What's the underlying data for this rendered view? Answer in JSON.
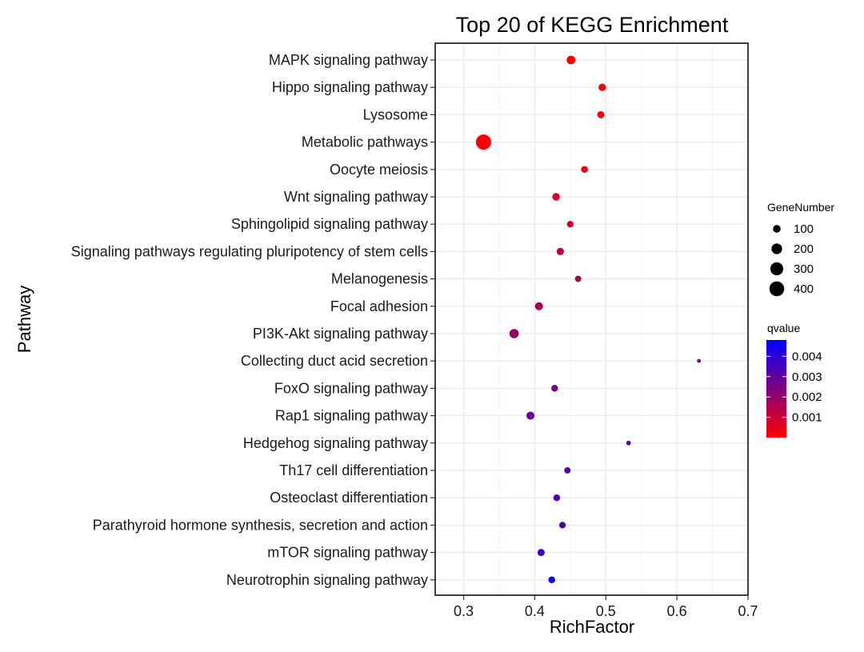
{
  "chart_data": {
    "type": "scatter",
    "title": "Top 20 of KEGG Enrichment",
    "xlabel": "RichFactor",
    "ylabel": "Pathway",
    "xlim": [
      0.26,
      0.7
    ],
    "xticks": [
      0.3,
      0.4,
      0.5,
      0.6,
      0.7
    ],
    "xtick_labels": [
      "0.3",
      "0.4",
      "0.5",
      "0.6",
      "0.7"
    ],
    "grid": true,
    "points": [
      {
        "pathway": "MAPK signaling pathway",
        "rich_factor": 0.451,
        "gene_number": 130,
        "qvalue": 2e-05
      },
      {
        "pathway": "Hippo signaling pathway",
        "rich_factor": 0.495,
        "gene_number": 95,
        "qvalue": 5e-05
      },
      {
        "pathway": "Lysosome",
        "rich_factor": 0.493,
        "gene_number": 85,
        "qvalue": 8e-05
      },
      {
        "pathway": "Metabolic pathways",
        "rich_factor": 0.328,
        "gene_number": 420,
        "qvalue": 0.0001
      },
      {
        "pathway": "Oocyte meiosis",
        "rich_factor": 0.47,
        "gene_number": 75,
        "qvalue": 0.0004
      },
      {
        "pathway": "Wnt signaling pathway",
        "rich_factor": 0.43,
        "gene_number": 95,
        "qvalue": 0.0006
      },
      {
        "pathway": "Sphingolipid signaling pathway",
        "rich_factor": 0.45,
        "gene_number": 70,
        "qvalue": 0.0009
      },
      {
        "pathway": "Signaling pathways regulating pluripotency of stem cells",
        "rich_factor": 0.436,
        "gene_number": 90,
        "qvalue": 0.0012
      },
      {
        "pathway": "Melanogenesis",
        "rich_factor": 0.461,
        "gene_number": 65,
        "qvalue": 0.0014
      },
      {
        "pathway": "Focal adhesion",
        "rich_factor": 0.406,
        "gene_number": 110,
        "qvalue": 0.0016
      },
      {
        "pathway": "PI3K-Akt signaling pathway",
        "rich_factor": 0.371,
        "gene_number": 150,
        "qvalue": 0.0019
      },
      {
        "pathway": "Collecting duct acid secretion",
        "rich_factor": 0.631,
        "gene_number": 18,
        "qvalue": 0.0024
      },
      {
        "pathway": "FoxO signaling pathway",
        "rich_factor": 0.428,
        "gene_number": 75,
        "qvalue": 0.0026
      },
      {
        "pathway": "Rap1 signaling pathway",
        "rich_factor": 0.394,
        "gene_number": 110,
        "qvalue": 0.0028
      },
      {
        "pathway": "Hedgehog signaling pathway",
        "rich_factor": 0.532,
        "gene_number": 30,
        "qvalue": 0.003
      },
      {
        "pathway": "Th17 cell differentiation",
        "rich_factor": 0.446,
        "gene_number": 65,
        "qvalue": 0.0031
      },
      {
        "pathway": "Osteoclast differentiation",
        "rich_factor": 0.431,
        "gene_number": 75,
        "qvalue": 0.0032
      },
      {
        "pathway": "Parathyroid hormone synthesis, secretion and action",
        "rich_factor": 0.439,
        "gene_number": 70,
        "qvalue": 0.0034
      },
      {
        "pathway": "mTOR signaling pathway",
        "rich_factor": 0.409,
        "gene_number": 85,
        "qvalue": 0.0037
      },
      {
        "pathway": "Neurotrophin signaling pathway",
        "rich_factor": 0.424,
        "gene_number": 75,
        "qvalue": 0.0047
      }
    ],
    "size_legend": {
      "title": "GeneNumber",
      "values": [
        100,
        200,
        300,
        400
      ],
      "labels": [
        "100",
        "200",
        "300",
        "400"
      ]
    },
    "color_legend": {
      "title": "qvalue",
      "range": [
        0,
        0.0048
      ],
      "ticks": [
        0.001,
        0.002,
        0.003,
        0.004
      ],
      "tick_labels": [
        "0.001",
        "0.002",
        "0.003",
        "0.004"
      ],
      "low_color": "#ff0000",
      "high_color": "#0000ff"
    }
  }
}
